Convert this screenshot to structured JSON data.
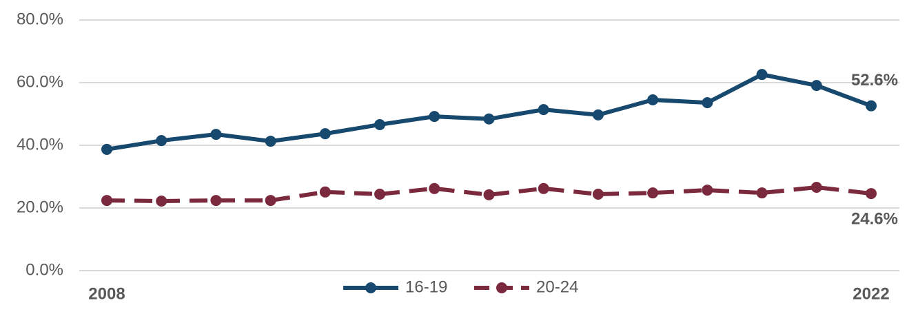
{
  "chart_data": {
    "type": "line",
    "categories": [
      "2008",
      null,
      null,
      null,
      null,
      null,
      null,
      null,
      null,
      null,
      null,
      null,
      null,
      null,
      "2022"
    ],
    "series": [
      {
        "name": "16-19",
        "color": "#17486e",
        "dash": false,
        "values": [
          38.7,
          41.5,
          43.5,
          41.3,
          43.7,
          46.6,
          49.2,
          48.4,
          51.4,
          49.7,
          54.5,
          53.6,
          62.6,
          59.1,
          52.6
        ],
        "value_labels": [
          null,
          null,
          null,
          null,
          null,
          null,
          null,
          null,
          null,
          null,
          null,
          null,
          null,
          null,
          "52.6%"
        ]
      },
      {
        "name": "20-24",
        "color": "#7b2a3d",
        "dash": true,
        "values": [
          22.4,
          22.2,
          22.4,
          22.4,
          25.1,
          24.4,
          26.2,
          24.2,
          26.2,
          24.4,
          24.8,
          25.7,
          24.8,
          26.6,
          24.6
        ],
        "value_labels": [
          null,
          null,
          null,
          null,
          null,
          null,
          null,
          null,
          null,
          null,
          null,
          null,
          null,
          null,
          "24.6%"
        ]
      }
    ],
    "ylim": [
      0,
      80
    ],
    "yticks": [
      {
        "value": 0,
        "label": "0.0%"
      },
      {
        "value": 20,
        "label": "20.0%"
      },
      {
        "value": 40,
        "label": "40.0%"
      },
      {
        "value": 60,
        "label": "60.0%"
      },
      {
        "value": 80,
        "label": "80.0%"
      }
    ],
    "grid": true,
    "legend": "bottom"
  }
}
